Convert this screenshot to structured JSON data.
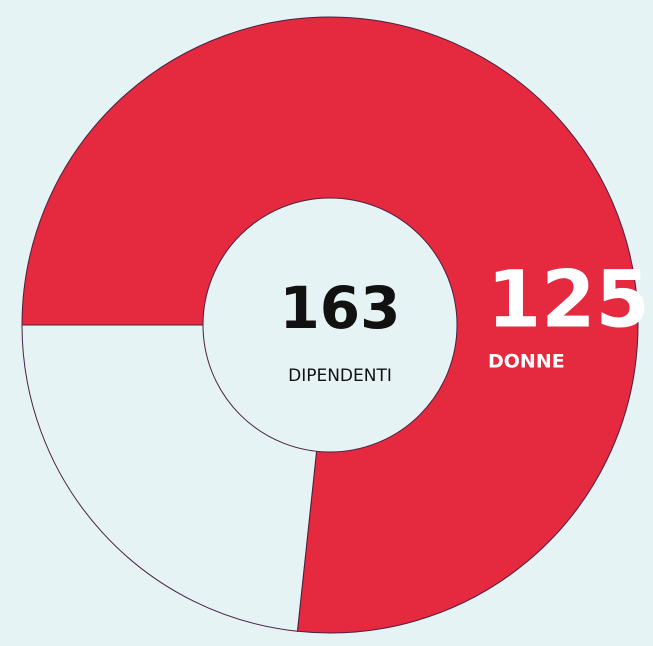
{
  "chart_data": {
    "type": "donut",
    "categories": [
      "DONNE",
      null
    ],
    "values": [
      125,
      38
    ],
    "colors": [
      "#e5293f",
      "#e6f3f4"
    ],
    "center_value": 163,
    "center_label": "DIPENDENTI"
  }
}
